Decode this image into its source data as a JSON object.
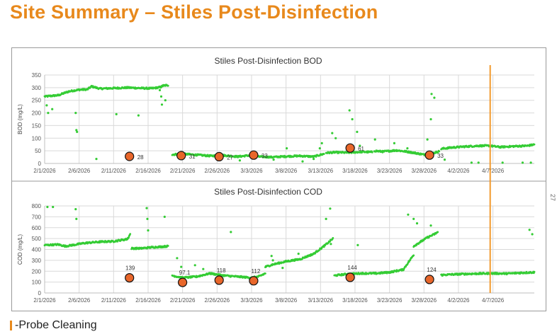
{
  "page": {
    "title": "Site Summary – Stiles Post-Disinfection",
    "legend_label": "-Probe Cleaning",
    "edge_mark": "27"
  },
  "colors": {
    "title": "#E8891C",
    "sensor": "#35CC35",
    "lab_marker_fill": "#E8662A",
    "lab_marker_stroke": "#111111",
    "probe_cleaning": "#F29A2E",
    "grid": "#d9d9d9"
  },
  "chart_data": [
    {
      "id": "bod",
      "type": "scatter",
      "title": "Stiles Post-Disinfection BOD",
      "xlabel": "",
      "ylabel": "BOD (mg/L)",
      "x_domain": [
        0,
        71
      ],
      "ylim": [
        0,
        350
      ],
      "yticks": [
        0,
        50,
        100,
        150,
        200,
        250,
        300,
        350
      ],
      "xtick_labels": [
        "2/1/2026",
        "2/6/2026",
        "2/11/2026",
        "2/16/2026",
        "2/21/2026",
        "2/26/2026",
        "3/3/2026",
        "3/8/2026",
        "3/13/2026",
        "3/18/2026",
        "3/23/2026",
        "3/28/2026",
        "4/2/2026",
        "4/7/2026"
      ],
      "xtick_days": [
        0,
        5,
        10,
        15,
        20,
        25,
        30,
        35,
        40,
        45,
        50,
        55,
        60,
        65
      ],
      "probe_cleaning_day": 64.6,
      "series": [
        {
          "name": "Sensor",
          "kind": "dense",
          "segments": [
            {
              "x": [
                0,
                2,
                3.5,
                5,
                6.2,
                6.8,
                8,
                10,
                12,
                14,
                15.5,
                16.8,
                17.2,
                17.9
              ],
              "y": [
                265,
                270,
                285,
                292,
                293,
                305,
                296,
                298,
                300,
                298,
                297,
                302,
                308,
                310
              ]
            },
            {
              "x": [
                18.5,
                20,
                22,
                24,
                26,
                28,
                29,
                30
              ],
              "y": [
                35,
                38,
                34,
                30,
                32,
                27,
                30,
                33
              ]
            },
            {
              "x": [
                31,
                33,
                35,
                37,
                39,
                40.5
              ],
              "y": [
                27,
                25,
                28,
                30,
                27,
                38
              ]
            },
            {
              "x": [
                40.8,
                42,
                44,
                46,
                47.5
              ],
              "y": [
                42,
                44,
                43,
                46,
                45
              ]
            },
            {
              "x": [
                47.8,
                49,
                51,
                52.5,
                54,
                55,
                56,
                57.2
              ],
              "y": [
                50,
                47,
                52,
                47,
                40,
                35,
                38,
                48
              ]
            },
            {
              "x": [
                57.5,
                59,
                61,
                63,
                64.5,
                66,
                68,
                70,
                71
              ],
              "y": [
                58,
                63,
                67,
                70,
                70,
                65,
                68,
                70,
                75
              ]
            }
          ]
        },
        {
          "name": "Sensor outliers",
          "kind": "points",
          "x": [
            0.3,
            0.5,
            1.1,
            4.5,
            4.6,
            4.7,
            7.5,
            10.4,
            13.6,
            16.7,
            16.9,
            17.0,
            17.5,
            28.3,
            33.2,
            35.1,
            37.4,
            39.0,
            39.9,
            40.2,
            41.7,
            42.2,
            44.2,
            44.6,
            45.3,
            45.7,
            47.9,
            50.7,
            52.6,
            55.5,
            56.0,
            56.1,
            56.5,
            58.0,
            61.9,
            62.9,
            66.4,
            69.3,
            70.5
          ],
          "y": [
            230,
            200,
            215,
            200,
            132,
            125,
            18,
            195,
            190,
            290,
            265,
            233,
            250,
            12,
            15,
            60,
            8,
            18,
            60,
            80,
            120,
            100,
            210,
            175,
            125,
            70,
            95,
            80,
            60,
            95,
            175,
            275,
            260,
            15,
            3,
            3,
            3,
            3,
            3
          ]
        },
        {
          "name": "Lab BOD",
          "kind": "markers",
          "x": [
            12.3,
            19.8,
            25.3,
            30.3,
            44.3,
            55.8
          ],
          "y": [
            28,
            31,
            27,
            33,
            61,
            33
          ],
          "labels": [
            "28",
            "31",
            "27",
            "33",
            "61",
            "33"
          ]
        }
      ]
    },
    {
      "id": "cod",
      "type": "scatter",
      "title": "Stiles Post-Disinfection COD",
      "xlabel": "",
      "ylabel": "COD (mg/L)",
      "x_domain": [
        0,
        71
      ],
      "ylim": [
        0,
        800
      ],
      "yticks": [
        0,
        100,
        200,
        300,
        400,
        500,
        600,
        700,
        800
      ],
      "xtick_labels": [
        "2/1/2026",
        "2/6/2026",
        "2/11/2026",
        "2/16/2026",
        "2/21/2026",
        "2/26/2026",
        "3/3/2026",
        "3/8/2026",
        "3/13/2026",
        "3/18/2026",
        "3/23/2026",
        "3/28/2026",
        "4/2/2026",
        "4/7/2026"
      ],
      "xtick_days": [
        0,
        5,
        10,
        15,
        20,
        25,
        30,
        35,
        40,
        45,
        50,
        55,
        60,
        65
      ],
      "probe_cleaning_day": 64.6,
      "series": [
        {
          "name": "Sensor",
          "kind": "dense",
          "segments": [
            {
              "x": [
                0,
                2,
                3,
                4,
                6,
                8,
                10,
                12,
                12.4
              ],
              "y": [
                440,
                445,
                430,
                440,
                460,
                470,
                475,
                495,
                540
              ]
            },
            {
              "x": [
                12.6,
                14,
                15.5,
                17,
                17.9
              ],
              "y": [
                410,
                410,
                420,
                425,
                430
              ]
            },
            {
              "x": [
                18.5,
                20,
                22,
                24,
                26,
                28,
                30,
                31,
                32
              ],
              "y": [
                160,
                140,
                150,
                180,
                160,
                150,
                140,
                150,
                180
              ]
            },
            {
              "x": [
                32,
                33,
                35,
                37,
                39,
                40.5,
                41.8
              ],
              "y": [
                240,
                260,
                290,
                310,
                360,
                430,
                500
              ]
            },
            {
              "x": [
                42,
                44,
                46,
                48,
                50,
                52,
                53.5
              ],
              "y": [
                160,
                175,
                180,
                180,
                190,
                215,
                350
              ]
            },
            {
              "x": [
                53.5,
                54.5,
                55.5,
                56.5,
                57
              ],
              "y": [
                430,
                470,
                510,
                540,
                560
              ]
            },
            {
              "x": [
                57.5,
                59,
                61,
                63,
                65,
                67,
                69,
                71
              ],
              "y": [
                165,
                170,
                175,
                178,
                180,
                178,
                185,
                190
              ]
            }
          ]
        },
        {
          "name": "Sensor outliers",
          "kind": "points",
          "x": [
            0.4,
            1.2,
            4.5,
            4.6,
            14.8,
            14.9,
            15.0,
            17.4,
            19.2,
            19.8,
            21.8,
            23.0,
            27.0,
            32.9,
            33.1,
            34.5,
            36.8,
            40.8,
            41.4,
            41.5,
            45.4,
            52.7,
            53.5,
            54.0,
            56.0,
            70.3,
            70.7
          ],
          "y": [
            790,
            790,
            770,
            680,
            780,
            680,
            575,
            700,
            320,
            240,
            255,
            220,
            560,
            340,
            300,
            230,
            360,
            680,
            775,
            450,
            440,
            720,
            680,
            640,
            620,
            580,
            540
          ]
        },
        {
          "name": "Lab COD",
          "kind": "markers",
          "x": [
            12.3,
            20.0,
            25.3,
            30.3,
            44.3,
            55.8
          ],
          "y": [
            139,
            97.1,
            118,
            112,
            144,
            124
          ],
          "labels": [
            "139",
            "97.1",
            "118",
            "112",
            "144",
            "124"
          ]
        }
      ]
    }
  ]
}
